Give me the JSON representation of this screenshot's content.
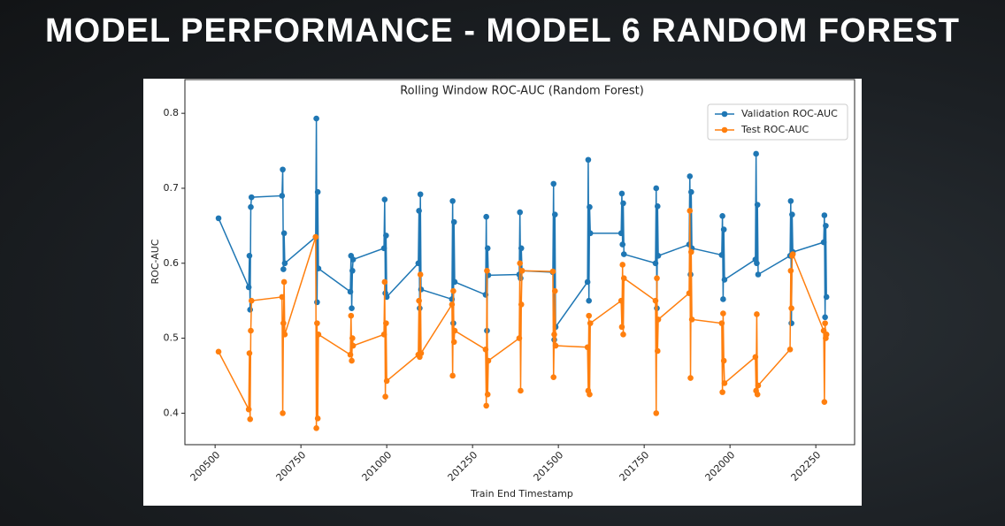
{
  "header": {
    "title": "MODEL PERFORMANCE - MODEL 6 RANDOM FOREST"
  },
  "chart_data": {
    "type": "line",
    "title": "Rolling Window ROC-AUC (Random Forest)",
    "x_label": "Train End Timestamp",
    "y_label": "ROC-AUC",
    "x": [
      200510,
      200598,
      200600,
      200602,
      200604,
      200606,
      200695,
      200697,
      200699,
      200701,
      200703,
      200793,
      200795,
      200797,
      200799,
      200801,
      200894,
      200896,
      200898,
      200900,
      200902,
      200992,
      200994,
      200996,
      200998,
      201000,
      201092,
      201094,
      201096,
      201098,
      201100,
      201190,
      201192,
      201194,
      201196,
      201198,
      201288,
      201290,
      201292,
      201294,
      201296,
      201386,
      201388,
      201390,
      201392,
      201394,
      201484,
      201486,
      201488,
      201490,
      201492,
      201585,
      201587,
      201589,
      201591,
      201593,
      201683,
      201685,
      201687,
      201689,
      201691,
      201783,
      201785,
      201787,
      201789,
      201791,
      201881,
      201883,
      201885,
      201887,
      201889,
      201976,
      201978,
      201980,
      201982,
      201984,
      202074,
      202076,
      202078,
      202080,
      202082,
      202175,
      202177,
      202179,
      202181,
      202183,
      202273,
      202275,
      202277,
      202279,
      202281
    ],
    "series": [
      {
        "name": "Validation ROC-AUC",
        "color": "#1f77b4",
        "values": [
          0.66,
          0.568,
          0.61,
          0.538,
          0.675,
          0.688,
          0.69,
          0.725,
          0.592,
          0.64,
          0.6,
          0.635,
          0.793,
          0.548,
          0.695,
          0.593,
          0.562,
          0.61,
          0.54,
          0.59,
          0.605,
          0.62,
          0.685,
          0.56,
          0.637,
          0.555,
          0.6,
          0.67,
          0.54,
          0.692,
          0.565,
          0.552,
          0.683,
          0.52,
          0.655,
          0.575,
          0.558,
          0.662,
          0.51,
          0.62,
          0.584,
          0.585,
          0.668,
          0.58,
          0.62,
          0.59,
          0.588,
          0.706,
          0.498,
          0.665,
          0.515,
          0.575,
          0.738,
          0.55,
          0.675,
          0.64,
          0.64,
          0.693,
          0.625,
          0.68,
          0.612,
          0.6,
          0.7,
          0.54,
          0.676,
          0.61,
          0.625,
          0.716,
          0.585,
          0.695,
          0.62,
          0.611,
          0.663,
          0.552,
          0.645,
          0.578,
          0.605,
          0.746,
          0.6,
          0.678,
          0.585,
          0.61,
          0.683,
          0.52,
          0.665,
          0.615,
          0.628,
          0.664,
          0.528,
          0.65,
          0.555
        ]
      },
      {
        "name": "Test ROC-AUC",
        "color": "#ff7f0e",
        "values": [
          0.482,
          0.405,
          0.48,
          0.392,
          0.51,
          0.55,
          0.555,
          0.4,
          0.52,
          0.575,
          0.505,
          0.635,
          0.38,
          0.52,
          0.393,
          0.505,
          0.478,
          0.53,
          0.47,
          0.5,
          0.49,
          0.505,
          0.575,
          0.422,
          0.52,
          0.443,
          0.478,
          0.55,
          0.475,
          0.585,
          0.48,
          0.545,
          0.45,
          0.563,
          0.495,
          0.51,
          0.485,
          0.41,
          0.59,
          0.425,
          0.47,
          0.5,
          0.6,
          0.43,
          0.545,
          0.59,
          0.589,
          0.448,
          0.505,
          0.563,
          0.49,
          0.488,
          0.43,
          0.53,
          0.425,
          0.52,
          0.55,
          0.515,
          0.598,
          0.505,
          0.58,
          0.55,
          0.4,
          0.58,
          0.483,
          0.525,
          0.56,
          0.67,
          0.447,
          0.615,
          0.525,
          0.52,
          0.428,
          0.533,
          0.47,
          0.44,
          0.475,
          0.43,
          0.532,
          0.425,
          0.437,
          0.485,
          0.59,
          0.54,
          0.61,
          0.612,
          0.51,
          0.415,
          0.52,
          0.5,
          0.505
        ]
      }
    ],
    "xlim": [
      200412,
      202363
    ],
    "ylim": [
      0.358,
      0.845
    ],
    "xticks": [
      200500,
      200750,
      201000,
      201250,
      201500,
      201750,
      202000,
      202250
    ],
    "yticks": [
      0.4,
      0.5,
      0.6,
      0.7,
      0.8
    ],
    "legend": "upper right",
    "grid": false
  }
}
